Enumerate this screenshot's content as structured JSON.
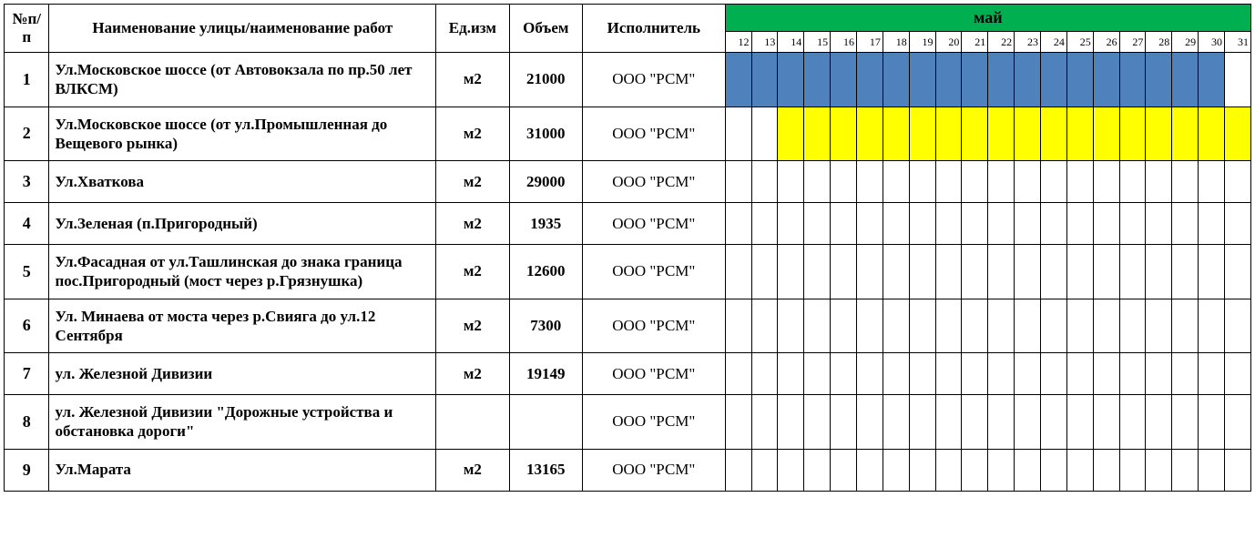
{
  "columns": {
    "num": "№п/п",
    "name": "Наименование улицы/наименование работ",
    "unit": "Ед.изм",
    "volume": "Объем",
    "executor": "Исполнитель",
    "month": "май"
  },
  "days": [
    12,
    13,
    14,
    15,
    16,
    17,
    18,
    19,
    20,
    21,
    22,
    23,
    24,
    25,
    26,
    27,
    28,
    29,
    30,
    31
  ],
  "colors": {
    "month_bg": "#00b050",
    "bar_blue": "#4f81bd",
    "bar_yellow": "#ffff00",
    "border": "#000000",
    "page_bg": "#ffffff"
  },
  "rows": [
    {
      "n": "1",
      "name": "Ул.Московское шоссе (от Автовокзала по пр.50 лет ВЛКСМ)",
      "unit": "м2",
      "vol": "21000",
      "exec": "ООО \"РСМ\"",
      "bar": {
        "from": 12,
        "to": 30,
        "color": "blue"
      }
    },
    {
      "n": "2",
      "name": "Ул.Московское шоссе (от ул.Промышленная до Вещевого рынка)",
      "unit": "м2",
      "vol": "31000",
      "exec": "ООО \"РСМ\"",
      "bar": {
        "from": 14,
        "to": 31,
        "color": "yellow"
      }
    },
    {
      "n": "3",
      "name": "Ул.Хваткова",
      "unit": "м2",
      "vol": "29000",
      "exec": "ООО \"РСМ\"",
      "bar": null
    },
    {
      "n": "4",
      "name": "Ул.Зеленая (п.Пригородный)",
      "unit": "м2",
      "vol": "1935",
      "exec": "ООО \"РСМ\"",
      "bar": null
    },
    {
      "n": "5",
      "name": "Ул.Фасадная от ул.Ташлинская до знака граница пос.Пригородный (мост через р.Грязнушка)",
      "unit": "м2",
      "vol": "12600",
      "exec": "ООО \"РСМ\"",
      "bar": null
    },
    {
      "n": "6",
      "name": "Ул. Минаева от моста через р.Свияга до ул.12 Сентября",
      "unit": "м2",
      "vol": "7300",
      "exec": "ООО \"РСМ\"",
      "bar": null
    },
    {
      "n": "7",
      "name": "ул. Железной Дивизии",
      "unit": "м2",
      "vol": "19149",
      "exec": "ООО \"РСМ\"",
      "bar": null
    },
    {
      "n": "8",
      "name": "ул. Железной Дивизии \"Дорожные устройства и обстановка дороги\"",
      "unit": "",
      "vol": "",
      "exec": "ООО \"РСМ\"",
      "bar": null
    },
    {
      "n": "9",
      "name": "Ул.Марата",
      "unit": "м2",
      "vol": "13165",
      "exec": "ООО \"РСМ\"",
      "bar": null
    }
  ]
}
